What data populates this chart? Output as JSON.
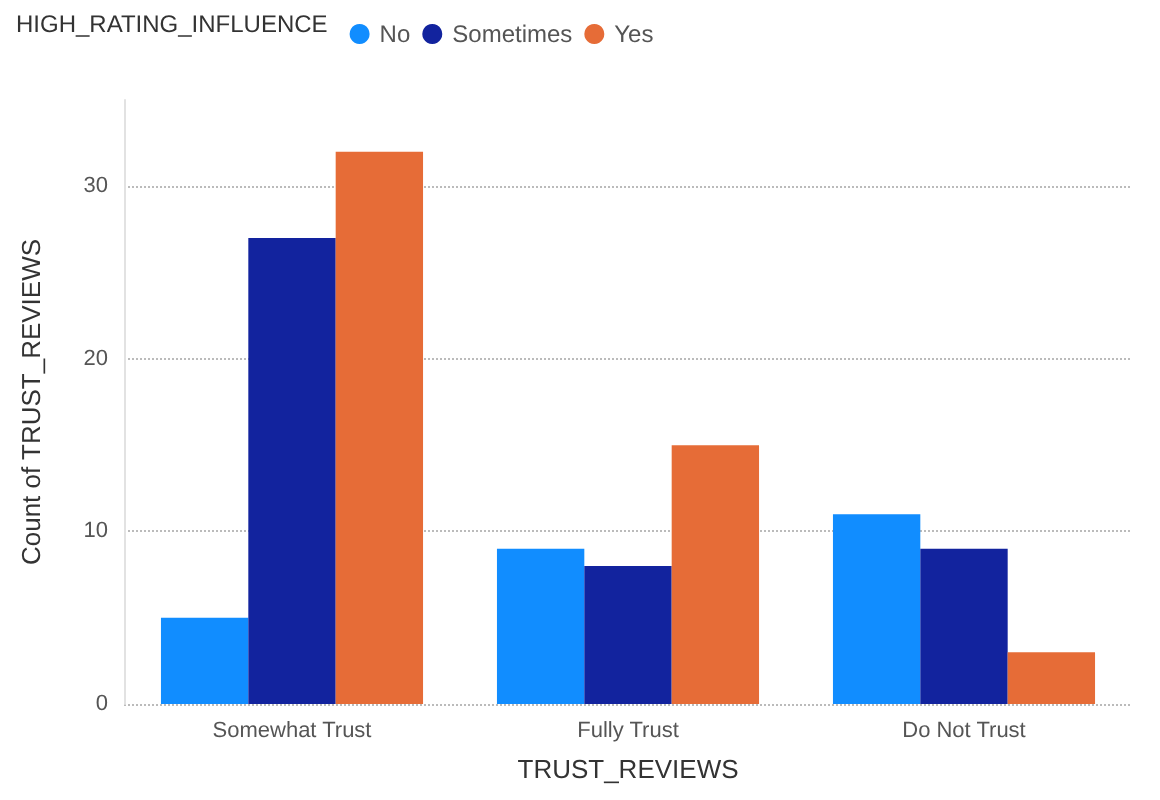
{
  "chart_data": {
    "type": "bar",
    "legend_title": "HIGH_RATING_INFLUENCE",
    "xlabel": "TRUST_REVIEWS",
    "ylabel": "Count of TRUST_REVIEWS",
    "categories": [
      "Somewhat Trust",
      "Fully Trust",
      "Do Not Trust"
    ],
    "series": [
      {
        "name": "No",
        "color": "#118dff",
        "values": [
          5,
          9,
          11
        ]
      },
      {
        "name": "Sometimes",
        "color": "#12239e",
        "values": [
          27,
          8,
          9
        ]
      },
      {
        "name": "Yes",
        "color": "#e66c37",
        "values": [
          32,
          15,
          3
        ]
      }
    ],
    "ylim": [
      0,
      35
    ],
    "yticks": [
      0,
      10,
      20,
      30
    ],
    "grid": "y",
    "legend": "top left"
  }
}
